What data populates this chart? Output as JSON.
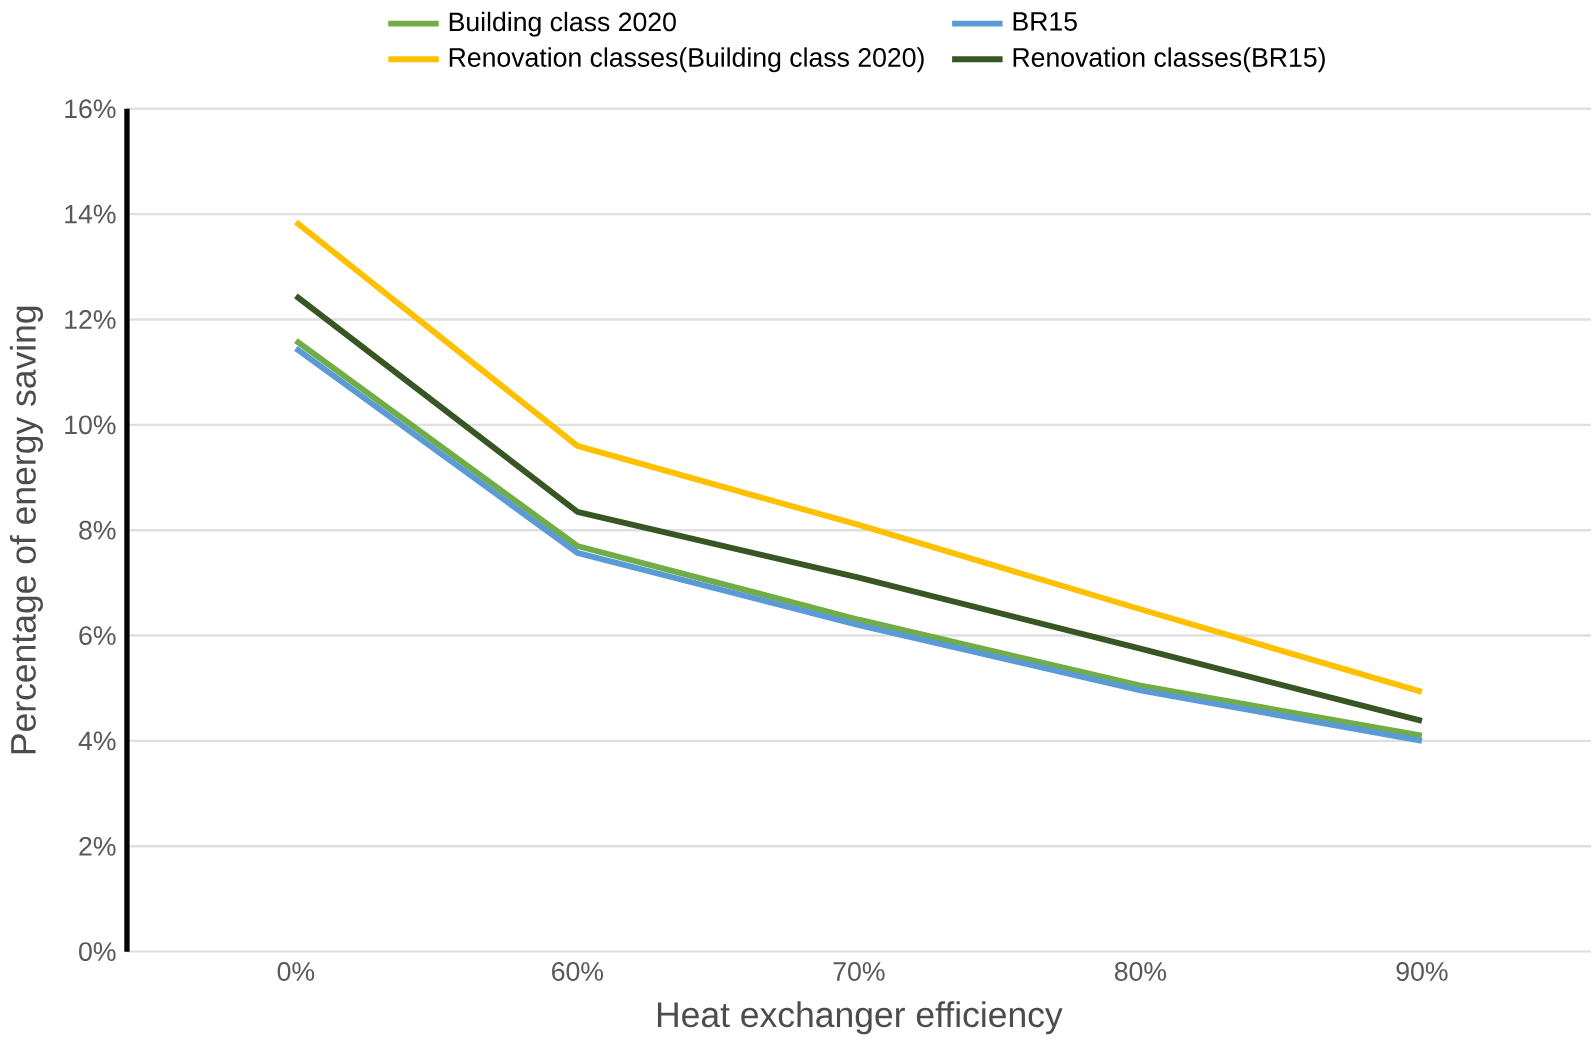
{
  "chart_data": {
    "type": "line",
    "xlabel": "Heat exchanger efficiency",
    "ylabel": "Percentage of energy saving",
    "categories": [
      "0%",
      "60%",
      "70%",
      "80%",
      "90%"
    ],
    "series": [
      {
        "name": "Building class 2020",
        "color": "#70ad47",
        "values": [
          11.6,
          7.7,
          6.3,
          5.05,
          4.1
        ]
      },
      {
        "name": "BR15",
        "color": "#5b9bd5",
        "values": [
          11.45,
          7.57,
          6.2,
          4.96,
          4.0
        ]
      },
      {
        "name": "Renovation classes(Building class 2020)",
        "color": "#ffc000",
        "values": [
          13.85,
          9.6,
          8.1,
          6.5,
          4.93
        ]
      },
      {
        "name": "Renovation classes(BR15)",
        "color": "#375623",
        "values": [
          12.45,
          8.35,
          7.1,
          5.75,
          4.38
        ]
      }
    ],
    "ylim": [
      0,
      16
    ],
    "yticks": [
      {
        "value": 0,
        "label": "0%"
      },
      {
        "value": 2,
        "label": "2%"
      },
      {
        "value": 4,
        "label": "4%"
      },
      {
        "value": 6,
        "label": "6%"
      },
      {
        "value": 8,
        "label": "8%"
      },
      {
        "value": 10,
        "label": "10%"
      },
      {
        "value": 12,
        "label": "12%"
      },
      {
        "value": 14,
        "label": "14%"
      },
      {
        "value": 16,
        "label": "16%"
      }
    ],
    "grid": "y",
    "legend": "top",
    "marker": "none",
    "line_style": "solid"
  }
}
